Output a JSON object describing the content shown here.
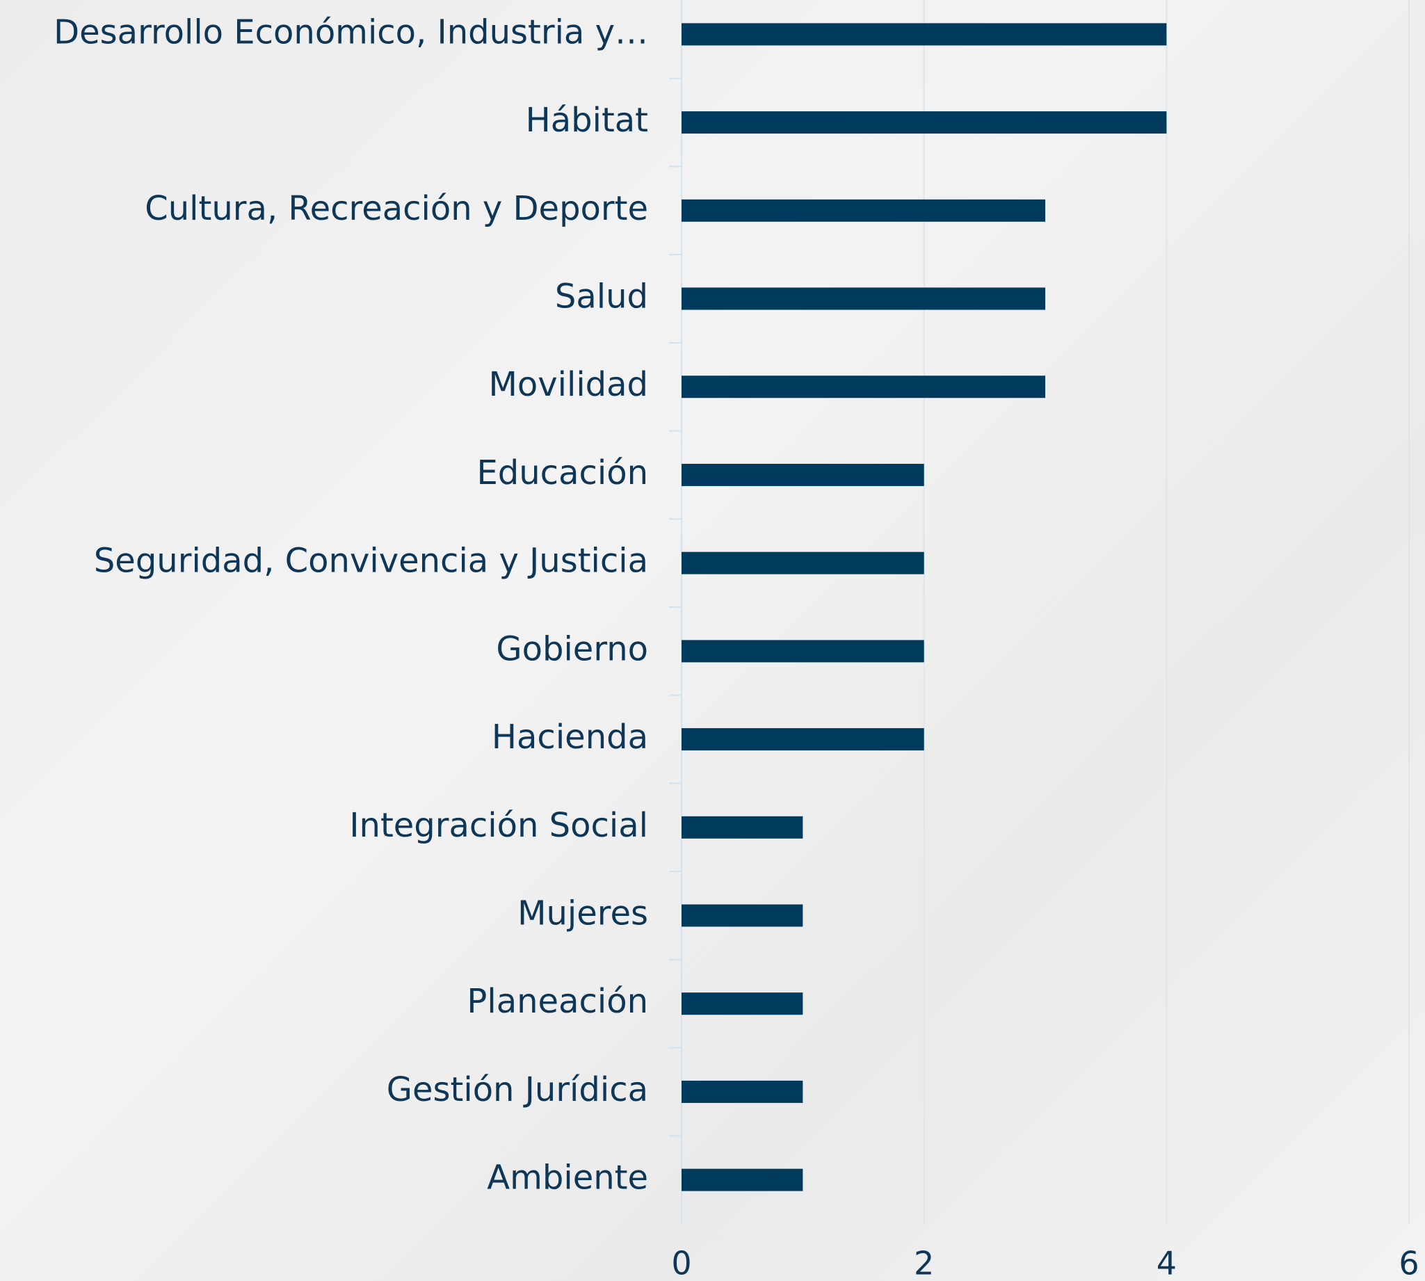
{
  "chart_data": {
    "type": "bar",
    "orientation": "horizontal",
    "categories": [
      "Desarrollo Económico, Industria y…",
      "Hábitat",
      "Cultura, Recreación y Deporte",
      "Salud",
      "Movilidad",
      "Educación",
      "Seguridad, Convivencia y Justicia",
      "Gobierno",
      "Hacienda",
      "Integración Social",
      "Mujeres",
      "Planeación",
      "Gestión Jurídica",
      "Ambiente"
    ],
    "values": [
      4,
      4,
      3,
      3,
      3,
      2,
      2,
      2,
      2,
      1,
      1,
      1,
      1,
      1
    ],
    "color": "#003a5d",
    "xlim": [
      0,
      6
    ],
    "xticks": [
      0,
      2,
      4,
      6
    ],
    "grid": true
  }
}
